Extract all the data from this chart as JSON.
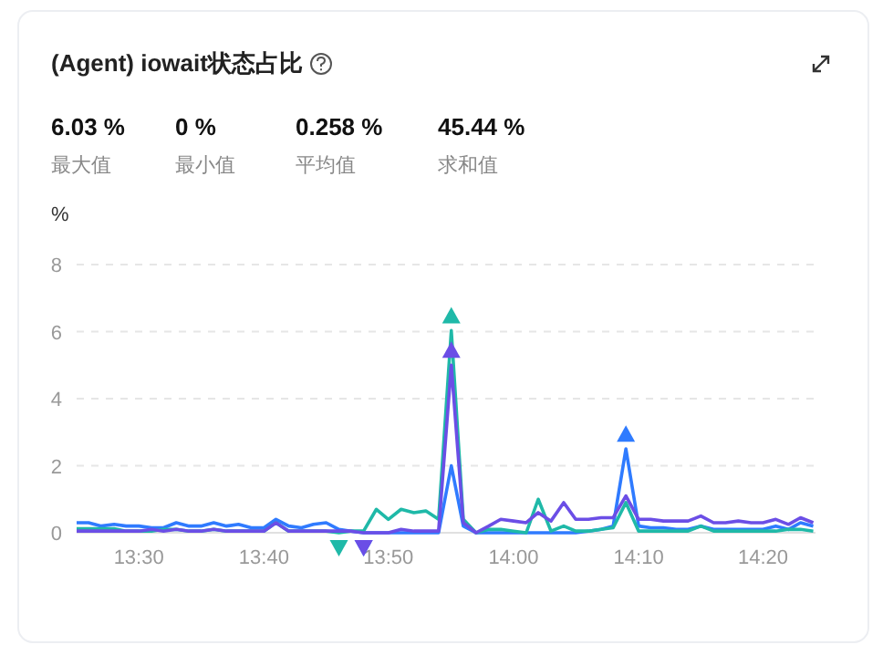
{
  "chart_data": {
    "type": "line",
    "title": "(Agent) iowait状态占比",
    "ylabel": "%",
    "annotations": [
      "6.03 %",
      "最大值",
      "0 %",
      "最小值",
      "0.258 %",
      "平均值",
      "45.44 %",
      "求和值"
    ],
    "x": [
      13.417,
      13.433,
      13.45,
      13.467,
      13.483,
      13.5,
      13.517,
      13.533,
      13.55,
      13.567,
      13.583,
      13.6,
      13.617,
      13.633,
      13.65,
      13.667,
      13.683,
      13.7,
      13.717,
      13.733,
      13.75,
      13.767,
      13.783,
      13.8,
      13.817,
      13.833,
      13.85,
      13.867,
      13.883,
      13.9,
      13.917,
      13.933,
      13.95,
      13.967,
      13.983,
      14.0,
      14.017,
      14.033,
      14.05,
      14.067,
      14.083,
      14.1,
      14.117,
      14.133,
      14.15,
      14.167,
      14.183,
      14.2,
      14.217,
      14.233,
      14.25,
      14.267,
      14.283,
      14.3,
      14.317,
      14.333,
      14.35,
      14.367,
      14.383,
      14.4
    ],
    "xlim": [
      13.417,
      14.403
    ],
    "xticks": [
      {
        "value": 13.5,
        "label": "13:30"
      },
      {
        "value": 13.667,
        "label": "13:40"
      },
      {
        "value": 13.833,
        "label": "13:50"
      },
      {
        "value": 14.0,
        "label": "14:00"
      },
      {
        "value": 14.167,
        "label": "14:10"
      },
      {
        "value": 14.333,
        "label": "14:20"
      }
    ],
    "ylim": [
      0,
      8
    ],
    "yticks": [
      0,
      2,
      4,
      6,
      8
    ],
    "grid": "y",
    "line_style": "solid",
    "series": [
      {
        "color": "#2f7bff",
        "values": [
          0.3,
          0.3,
          0.2,
          0.25,
          0.2,
          0.2,
          0.15,
          0.15,
          0.3,
          0.2,
          0.2,
          0.3,
          0.2,
          0.25,
          0.15,
          0.15,
          0.4,
          0.2,
          0.15,
          0.25,
          0.3,
          0.1,
          0.05,
          0,
          0,
          0,
          0,
          0,
          0,
          0,
          2.0,
          0.2,
          0,
          0,
          0,
          0,
          0,
          0,
          0,
          0,
          0,
          0.05,
          0.1,
          0.2,
          2.5,
          0.2,
          0.15,
          0.15,
          0.1,
          0.1,
          0.2,
          0.1,
          0.1,
          0.1,
          0.1,
          0.1,
          0.2,
          0.1,
          0.3,
          0.2
        ]
      },
      {
        "color": "#1fb9a8",
        "values": [
          0.12,
          0.12,
          0.12,
          0.12,
          0.05,
          0.05,
          0.05,
          0.1,
          0.1,
          0.05,
          0.05,
          0.1,
          0.05,
          0.05,
          0.05,
          0.05,
          0.3,
          0.05,
          0.05,
          0.05,
          0.05,
          0,
          0.05,
          0.05,
          0.7,
          0.4,
          0.7,
          0.6,
          0.65,
          0.4,
          6.03,
          0.4,
          0,
          0.1,
          0.1,
          0.05,
          0,
          1.0,
          0.05,
          0.2,
          0.05,
          0.05,
          0.1,
          0.15,
          0.9,
          0.05,
          0.05,
          0.05,
          0.05,
          0.05,
          0.2,
          0.05,
          0.05,
          0.05,
          0.05,
          0.05,
          0.05,
          0.1,
          0.1,
          0.05
        ]
      },
      {
        "color": "#6b4ee6",
        "values": [
          0.05,
          0.05,
          0.05,
          0.05,
          0.05,
          0.05,
          0.1,
          0.05,
          0.1,
          0.05,
          0.05,
          0.1,
          0.05,
          0.05,
          0.05,
          0.05,
          0.3,
          0.05,
          0.05,
          0.05,
          0.05,
          0.05,
          0.05,
          0,
          0,
          0,
          0.1,
          0.05,
          0.05,
          0.05,
          5.0,
          0.3,
          0,
          0.2,
          0.4,
          0.35,
          0.3,
          0.6,
          0.35,
          0.9,
          0.4,
          0.4,
          0.45,
          0.45,
          1.1,
          0.4,
          0.4,
          0.35,
          0.35,
          0.35,
          0.5,
          0.3,
          0.3,
          0.35,
          0.3,
          0.3,
          0.4,
          0.25,
          0.45,
          0.3
        ]
      }
    ]
  }
}
